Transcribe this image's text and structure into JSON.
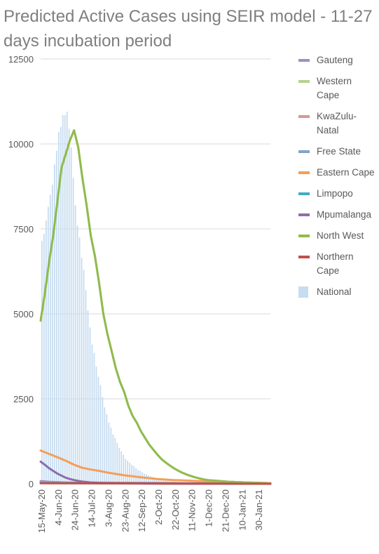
{
  "title": "Predicted Active Cases using SEIR model - 11-27 days incubation period",
  "chart_data": {
    "type": "bar",
    "title": "Predicted Active Cases using SEIR model - 11-27 days incubation period",
    "xlabel": "",
    "ylabel": "",
    "ylim": [
      0,
      12500
    ],
    "yticks": [
      0,
      2500,
      5000,
      7500,
      10000,
      12500
    ],
    "grid": true,
    "legend_position": "right",
    "x_tick_labels": [
      "15-May-20",
      "4-Jun-20",
      "24-Jun-20",
      "14-Jul-20",
      "3-Aug-20",
      "23-Aug-20",
      "12-Sep-20",
      "2-Oct-20",
      "22-Oct-20",
      "11-Nov-20",
      "1-Dec-20",
      "21-Dec-20",
      "10-Jan-21",
      "30-Jan-21"
    ],
    "x_range_days_from_first_tick": [
      0,
      275
    ],
    "bar_step_days": 5,
    "series": [
      {
        "name": "Gauteng",
        "kind": "line",
        "color": "#9f8fc2",
        "x": [
          0,
          10,
          20,
          30,
          40,
          50,
          60,
          70,
          80,
          275
        ],
        "values": [
          80,
          60,
          50,
          40,
          30,
          25,
          20,
          15,
          10,
          0
        ]
      },
      {
        "name": "Western Cape",
        "kind": "line",
        "color": "#b5d38c",
        "x": [
          0,
          5,
          10,
          15,
          20,
          25,
          30,
          35,
          40,
          45,
          50,
          55,
          60,
          65,
          70,
          75,
          80,
          85,
          90,
          95,
          100,
          105,
          110,
          115,
          120,
          125,
          130,
          135,
          140,
          145,
          150,
          155,
          160,
          165,
          170,
          175,
          180,
          185,
          190,
          195,
          200,
          205,
          210,
          215,
          220,
          225,
          230,
          235,
          240,
          245,
          250,
          255,
          260,
          265,
          270
        ],
        "values": [
          4800,
          5600,
          6500,
          7300,
          8300,
          9300,
          9700,
          10100,
          10400,
          9900,
          9000,
          8200,
          7300,
          6700,
          5900,
          5000,
          4400,
          3900,
          3400,
          3000,
          2700,
          2300,
          2000,
          1800,
          1550,
          1350,
          1150,
          1000,
          850,
          720,
          620,
          530,
          450,
          380,
          320,
          270,
          230,
          190,
          160,
          130,
          110,
          100,
          90,
          80,
          70,
          60,
          55,
          50,
          45,
          40,
          35,
          30,
          25,
          20,
          15
        ]
      },
      {
        "name": "KwaZulu-Natal",
        "kind": "line",
        "color": "#d99693",
        "x": [
          0,
          100,
          200,
          275
        ],
        "values": [
          40,
          30,
          15,
          5
        ]
      },
      {
        "name": "Free State",
        "kind": "line",
        "color": "#7ea6c8",
        "x": [
          0,
          100,
          200,
          275
        ],
        "values": [
          30,
          20,
          10,
          3
        ]
      },
      {
        "name": "Eastern Cape",
        "kind": "line",
        "color": "#f59e57",
        "x": [
          0,
          10,
          20,
          30,
          40,
          50,
          60,
          70,
          80,
          90,
          100,
          120,
          140,
          160,
          180,
          200,
          220,
          240,
          260,
          275
        ],
        "values": [
          980,
          880,
          780,
          680,
          560,
          470,
          420,
          380,
          330,
          290,
          250,
          190,
          140,
          110,
          90,
          70,
          55,
          40,
          30,
          20
        ]
      },
      {
        "name": "Limpopo",
        "kind": "line",
        "color": "#41adc0",
        "x": [
          0,
          100,
          200,
          275
        ],
        "values": [
          25,
          15,
          8,
          2
        ]
      },
      {
        "name": "Mpumalanga",
        "kind": "line",
        "color": "#8a6fab",
        "x": [
          0,
          5,
          10,
          15,
          20,
          25,
          30,
          35,
          40,
          45,
          50,
          60,
          70,
          80,
          100,
          130,
          170,
          220,
          275
        ],
        "values": [
          650,
          560,
          460,
          380,
          300,
          240,
          180,
          140,
          110,
          85,
          65,
          40,
          28,
          20,
          12,
          8,
          5,
          3,
          1
        ]
      },
      {
        "name": "North West",
        "kind": "line",
        "color": "#8fbb4c",
        "x": [
          0,
          5,
          10,
          15,
          20,
          25,
          30,
          35,
          40,
          45,
          50,
          55,
          60,
          65,
          70,
          75,
          80,
          85,
          90,
          95,
          100,
          105,
          110,
          115,
          120,
          125,
          130,
          135,
          140,
          145,
          150,
          155,
          160,
          165,
          170,
          175,
          180,
          185,
          190,
          195,
          200,
          205,
          210,
          215,
          220,
          225,
          230,
          235,
          240,
          245,
          250,
          255,
          260,
          265,
          270
        ],
        "values": [
          4800,
          5600,
          6500,
          7300,
          8300,
          9300,
          9700,
          10100,
          10400,
          9900,
          9000,
          8200,
          7300,
          6700,
          5900,
          5000,
          4400,
          3900,
          3400,
          3000,
          2700,
          2300,
          2000,
          1800,
          1550,
          1350,
          1150,
          1000,
          850,
          720,
          620,
          530,
          450,
          380,
          320,
          270,
          230,
          190,
          160,
          130,
          110,
          100,
          90,
          80,
          70,
          60,
          55,
          50,
          45,
          40,
          35,
          30,
          25,
          20,
          15
        ]
      },
      {
        "name": "Northern Cape",
        "kind": "line",
        "color": "#c0504d",
        "x": [
          0,
          100,
          200,
          275
        ],
        "values": [
          15,
          10,
          5,
          1
        ]
      },
      {
        "name": "National",
        "kind": "bar",
        "color": "#c6dcf0",
        "x": [
          0,
          2.5,
          5,
          7.5,
          10,
          12.5,
          15,
          17.5,
          20,
          22.5,
          25,
          27.5,
          30,
          32.5,
          35,
          37.5,
          40,
          42.5,
          45,
          47.5,
          50,
          52.5,
          55,
          57.5,
          60,
          62.5,
          65,
          67.5,
          70,
          72.5,
          75,
          77.5,
          80,
          82.5,
          85,
          87.5,
          90,
          92.5,
          95,
          97.5,
          100,
          102.5,
          105,
          107.5,
          110,
          112.5,
          115,
          117.5,
          120,
          122.5,
          125,
          127.5,
          130,
          132.5,
          135,
          137.5,
          140,
          142.5,
          145,
          147.5,
          150,
          152.5,
          155,
          157.5,
          160,
          162.5,
          165,
          167.5,
          170,
          172.5,
          175,
          177.5,
          180,
          182.5,
          185,
          187.5,
          190,
          192.5,
          195,
          197.5,
          200,
          202.5,
          205,
          207.5,
          210,
          212.5,
          215,
          217.5,
          220,
          222.5,
          225,
          227.5,
          230,
          232.5,
          235,
          237.5,
          240,
          242.5,
          245,
          247.5,
          250,
          252.5,
          255,
          257.5,
          260,
          262.5,
          265,
          267.5,
          270
        ],
        "values": [
          7150,
          7350,
          7750,
          8150,
          8500,
          8800,
          9400,
          9800,
          10350,
          10500,
          10850,
          10850,
          10950,
          10450,
          9900,
          9000,
          8200,
          7600,
          7250,
          6650,
          6300,
          5700,
          5100,
          4600,
          4100,
          3850,
          3450,
          3150,
          2900,
          2550,
          2250,
          2050,
          1800,
          1650,
          1450,
          1350,
          1200,
          1050,
          950,
          850,
          730,
          680,
          620,
          560,
          520,
          460,
          410,
          380,
          340,
          300,
          280,
          250,
          220,
          200,
          175,
          160,
          140,
          125,
          115,
          100,
          92,
          85,
          78,
          72,
          66,
          60,
          55,
          50,
          46,
          42,
          38,
          35,
          32,
          30,
          27,
          25,
          23,
          21,
          19,
          18,
          16,
          15,
          14,
          13,
          12,
          11,
          10,
          10,
          9,
          8,
          8,
          7,
          7,
          6,
          6,
          5,
          5,
          5,
          4,
          4,
          4,
          3,
          3,
          3,
          3,
          2,
          2,
          2,
          2
        ]
      }
    ]
  }
}
